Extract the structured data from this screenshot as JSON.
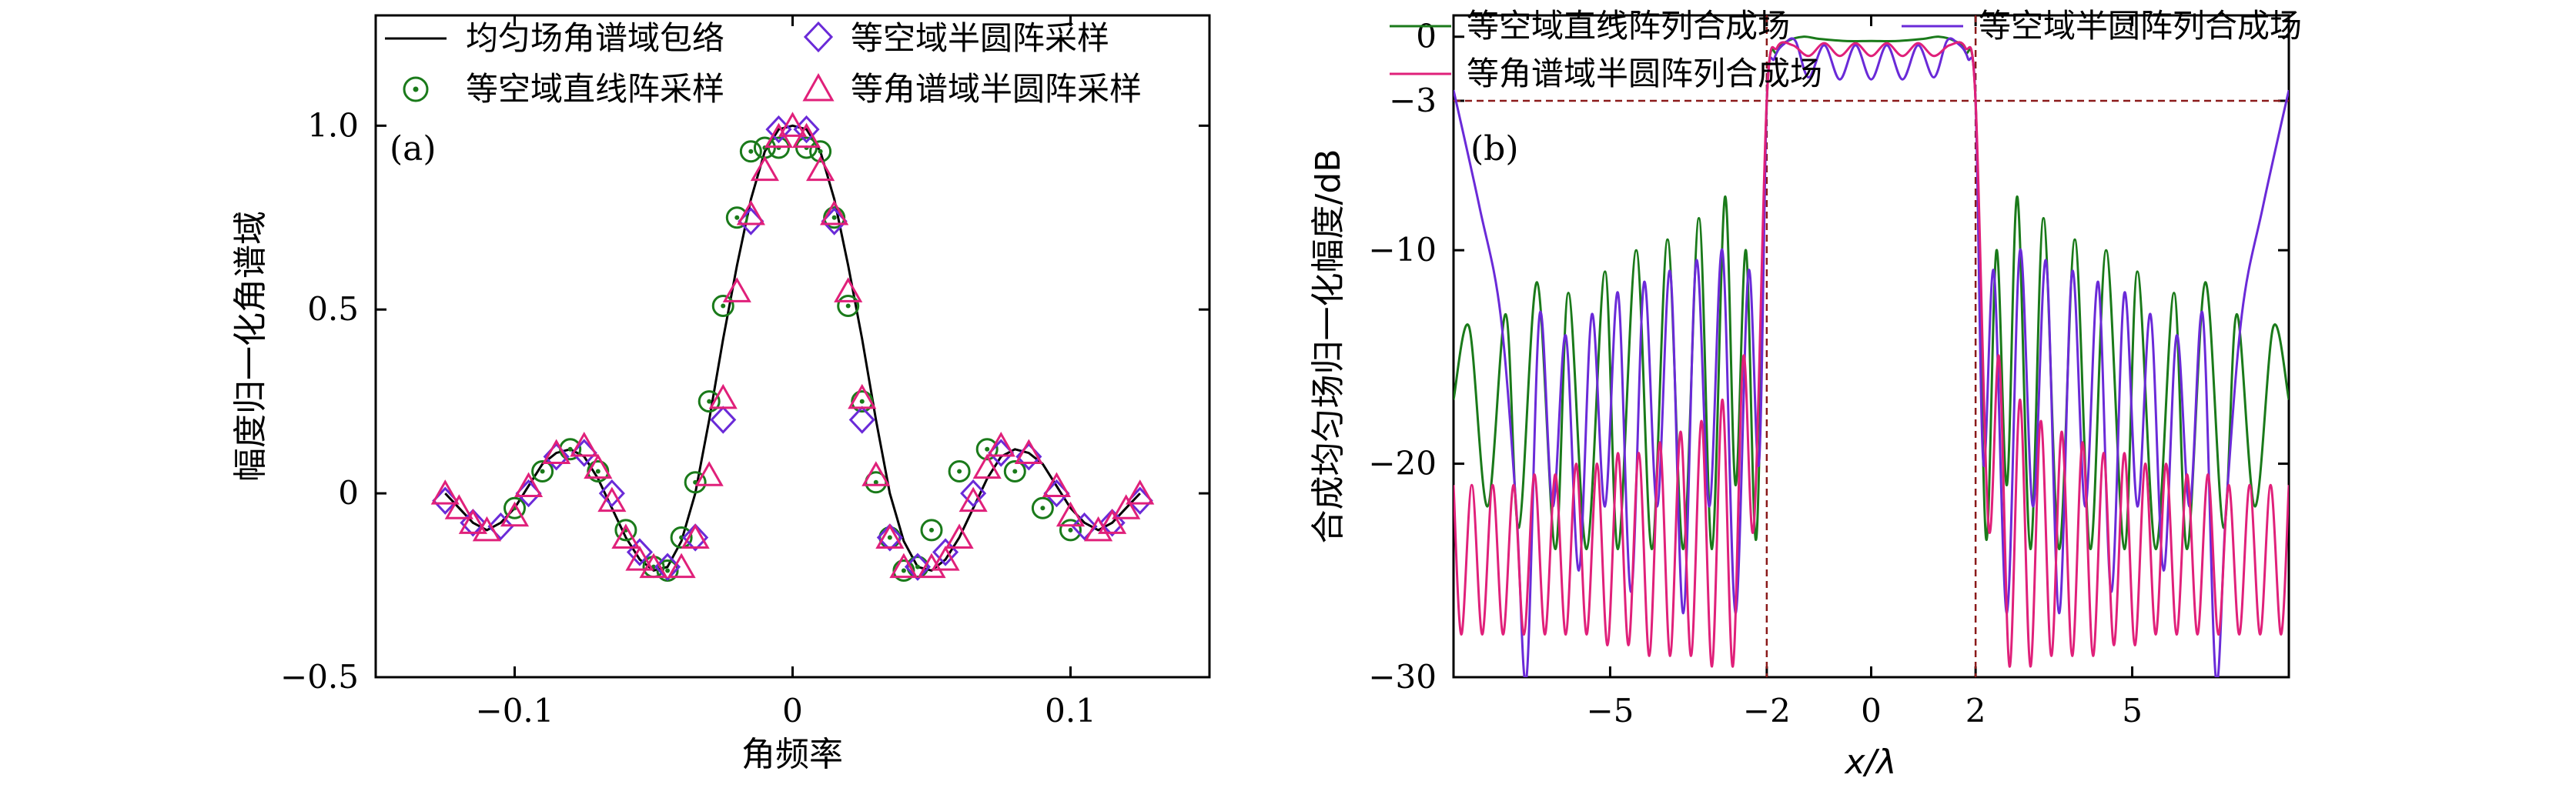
{
  "chart_data": [
    {
      "panel": "(a)",
      "type": "line",
      "xlabel": "角频率",
      "ylabel": "幅度归一化角谱域",
      "xlim": [
        -0.15,
        0.15
      ],
      "ylim": [
        -0.5,
        1.3
      ],
      "xticks": [
        -0.1,
        0,
        0.1
      ],
      "xtick_labels": [
        "−0.1",
        "0",
        "0.1"
      ],
      "yticks": [
        -0.5,
        0,
        0.5,
        1.0
      ],
      "ytick_labels": [
        "−0.5",
        "0",
        "0.5",
        "1.0"
      ],
      "legend": [
        {
          "label": "均匀场角谱域包络",
          "marker": "line",
          "color": "#000000"
        },
        {
          "label": "等空域直线阵采样",
          "marker": "circle-dot",
          "color": "#1a7a1a"
        },
        {
          "label": "等空域半圆阵采样",
          "marker": "diamond",
          "color": "#6a2ad8"
        },
        {
          "label": "等角谱域半圆阵采样",
          "marker": "triangle",
          "color": "#e0207a"
        }
      ],
      "envelope": {
        "name": "均匀场角谱域包络",
        "x": [
          -0.125,
          -0.12,
          -0.115,
          -0.11,
          -0.105,
          -0.1,
          -0.095,
          -0.09,
          -0.085,
          -0.08,
          -0.075,
          -0.07,
          -0.065,
          -0.06,
          -0.055,
          -0.05,
          -0.045,
          -0.04,
          -0.035,
          -0.03,
          -0.025,
          -0.02,
          -0.015,
          -0.01,
          -0.005,
          0,
          0.005,
          0.01,
          0.015,
          0.02,
          0.025,
          0.03,
          0.035,
          0.04,
          0.045,
          0.05,
          0.055,
          0.06,
          0.065,
          0.07,
          0.075,
          0.08,
          0.085,
          0.09,
          0.095,
          0.1,
          0.105,
          0.11,
          0.115,
          0.12,
          0.125
        ],
        "y": [
          0,
          -0.04,
          -0.08,
          -0.1,
          -0.08,
          -0.04,
          0.02,
          0.08,
          0.11,
          0.12,
          0.1,
          0.04,
          -0.04,
          -0.12,
          -0.18,
          -0.21,
          -0.2,
          -0.13,
          0.0,
          0.2,
          0.42,
          0.62,
          0.8,
          0.93,
          0.99,
          1.0,
          0.99,
          0.93,
          0.8,
          0.62,
          0.42,
          0.2,
          0.0,
          -0.13,
          -0.2,
          -0.21,
          -0.18,
          -0.12,
          -0.04,
          0.04,
          0.1,
          0.12,
          0.11,
          0.08,
          0.02,
          -0.04,
          -0.08,
          -0.1,
          -0.08,
          -0.04,
          0
        ]
      },
      "series": [
        {
          "name": "等空域直线阵采样",
          "marker": "circle-dot",
          "color": "#1a7a1a",
          "x": [
            -0.1,
            -0.09,
            -0.08,
            -0.07,
            -0.06,
            -0.05,
            -0.045,
            -0.04,
            -0.035,
            -0.03,
            -0.025,
            -0.02,
            -0.015,
            -0.01,
            -0.005,
            0.005,
            0.01,
            0.015,
            0.02,
            0.025,
            0.03,
            0.035,
            0.04,
            0.045,
            0.05,
            0.06,
            0.07,
            0.08,
            0.09,
            0.1
          ],
          "y": [
            -0.04,
            0.06,
            0.12,
            0.06,
            -0.1,
            -0.2,
            -0.21,
            -0.12,
            0.03,
            0.25,
            0.51,
            0.75,
            0.93,
            0.94,
            0.94,
            0.94,
            0.93,
            0.75,
            0.51,
            0.25,
            0.03,
            -0.12,
            -0.21,
            -0.2,
            -0.1,
            0.06,
            0.12,
            0.06,
            -0.04,
            -0.1
          ]
        },
        {
          "name": "等空域半圆阵采样",
          "marker": "diamond",
          "color": "#6a2ad8",
          "x": [
            -0.125,
            -0.115,
            -0.105,
            -0.095,
            -0.085,
            -0.075,
            -0.065,
            -0.055,
            -0.045,
            -0.035,
            -0.025,
            -0.015,
            -0.005,
            0.005,
            0.015,
            0.025,
            0.035,
            0.045,
            0.055,
            0.065,
            0.075,
            0.085,
            0.095,
            0.105,
            0.115,
            0.125
          ],
          "y": [
            -0.02,
            -0.08,
            -0.09,
            0.0,
            0.1,
            0.11,
            0.0,
            -0.16,
            -0.2,
            -0.12,
            0.2,
            0.74,
            0.99,
            0.99,
            0.74,
            0.2,
            -0.12,
            -0.2,
            -0.16,
            0.0,
            0.11,
            0.1,
            0.0,
            -0.09,
            -0.08,
            -0.02
          ]
        },
        {
          "name": "等角谱域半圆阵采样",
          "marker": "triangle",
          "color": "#e0207a",
          "x": [
            -0.125,
            -0.12,
            -0.115,
            -0.11,
            -0.1,
            -0.095,
            -0.085,
            -0.075,
            -0.07,
            -0.065,
            -0.06,
            -0.055,
            -0.05,
            -0.04,
            -0.035,
            -0.03,
            -0.025,
            -0.02,
            -0.015,
            -0.01,
            -0.005,
            0,
            0.005,
            0.01,
            0.015,
            0.02,
            0.025,
            0.03,
            0.035,
            0.04,
            0.05,
            0.055,
            0.06,
            0.065,
            0.07,
            0.075,
            0.085,
            0.095,
            0.1,
            0.11,
            0.115,
            0.12,
            0.125
          ],
          "y": [
            0.0,
            -0.04,
            -0.08,
            -0.1,
            -0.06,
            0.02,
            0.11,
            0.13,
            0.07,
            -0.02,
            -0.12,
            -0.18,
            -0.2,
            -0.2,
            -0.12,
            0.05,
            0.26,
            0.55,
            0.76,
            0.88,
            0.97,
            1.0,
            0.97,
            0.88,
            0.76,
            0.55,
            0.26,
            0.05,
            -0.12,
            -0.2,
            -0.2,
            -0.18,
            -0.12,
            -0.02,
            0.07,
            0.13,
            0.11,
            0.02,
            -0.06,
            -0.1,
            -0.08,
            -0.04,
            0.0
          ]
        }
      ]
    },
    {
      "panel": "(b)",
      "type": "line",
      "xlabel": "x/λ",
      "ylabel": "合成均匀场归一化幅度/dB",
      "xlim": [
        -8,
        8
      ],
      "ylim": [
        -30,
        1
      ],
      "xticks": [
        -5,
        -2,
        0,
        2,
        5
      ],
      "xtick_labels": [
        "−5",
        "−2",
        "0",
        "2",
        "5"
      ],
      "yticks": [
        0,
        -3,
        -10,
        -20,
        -30
      ],
      "ytick_labels": [
        "0",
        "−3",
        "−10",
        "−20",
        "−30"
      ],
      "ref_lines": {
        "vertical": [
          -2,
          2
        ],
        "horizontal": [
          -3
        ],
        "color": "#8b1a1a"
      },
      "legend": [
        {
          "label": "等空域直线阵列合成场",
          "color": "#1a7a1a"
        },
        {
          "label": "等空域半圆阵列合成场",
          "color": "#6a2ad8"
        },
        {
          "label": "等角谱域半圆阵列合成场",
          "color": "#e0207a"
        }
      ],
      "series": [
        {
          "name": "等空域直线阵列合成场",
          "color": "#1a7a1a",
          "x": [
            -8,
            -7.7,
            -7.35,
            -7.0,
            -6.75,
            -6.4,
            -6.05,
            -5.8,
            -5.45,
            -5.1,
            -4.85,
            -4.5,
            -4.2,
            -3.9,
            -3.6,
            -3.3,
            -3.05,
            -2.8,
            -2.6,
            -2.4,
            -2.2,
            -2.0,
            -1.8,
            -1.6,
            -1.3,
            -1.0,
            -0.5,
            0,
            0.5,
            1.0,
            1.3,
            1.6,
            1.8,
            2.0,
            2.2,
            2.4,
            2.6,
            2.8,
            3.05,
            3.3,
            3.6,
            3.9,
            4.2,
            4.5,
            4.85,
            5.1,
            5.45,
            5.8,
            6.05,
            6.4,
            6.75,
            7.0,
            7.35,
            7.7,
            8
          ],
          "y": [
            -17,
            -13.6,
            -22,
            -13,
            -23,
            -11.5,
            -24,
            -12,
            -24,
            -11,
            -24,
            -10,
            -24,
            -9.5,
            -24,
            -8.5,
            -24,
            -7.5,
            -21,
            -10,
            -23.5,
            -3,
            -0.7,
            -0.2,
            0,
            -0.1,
            -0.2,
            -0.2,
            -0.2,
            -0.1,
            0,
            -0.2,
            -0.7,
            -3,
            -23.5,
            -10,
            -21,
            -7.5,
            -24,
            -8.5,
            -24,
            -9.5,
            -24,
            -10,
            -24,
            -11,
            -24,
            -12,
            -24,
            -11.5,
            -23,
            -13,
            -22,
            -13.6,
            -17
          ]
        },
        {
          "name": "等空域半圆阵列合成场",
          "color": "#6a2ad8",
          "x": [
            -8,
            -7.5,
            -7.1,
            -6.8,
            -6.6,
            -6.35,
            -6.1,
            -5.85,
            -5.6,
            -5.35,
            -5.1,
            -4.85,
            -4.6,
            -4.35,
            -4.1,
            -3.85,
            -3.6,
            -3.35,
            -3.1,
            -2.85,
            -2.6,
            -2.35,
            -2.15,
            -2.0,
            -1.85,
            -1.65,
            -1.45,
            -1.2,
            -0.9,
            -0.6,
            -0.3,
            0,
            0.3,
            0.6,
            0.9,
            1.2,
            1.45,
            1.65,
            1.85,
            2.0,
            2.15,
            2.35,
            2.6,
            2.85,
            3.1,
            3.35,
            3.6,
            3.85,
            4.1,
            4.35,
            4.6,
            4.85,
            5.1,
            5.35,
            5.6,
            5.85,
            6.1,
            6.35,
            6.6,
            6.8,
            7.1,
            7.5,
            8
          ],
          "y": [
            -2.5,
            -8,
            -13,
            -22,
            -30,
            -13,
            -22,
            -14,
            -25,
            -13,
            -22,
            -12,
            -26,
            -11.5,
            -22,
            -11,
            -27,
            -10.5,
            -22,
            -10,
            -27,
            -11,
            -20,
            -3,
            -1,
            -0.3,
            -0.2,
            -1.9,
            -0.4,
            -2,
            -0.4,
            -2,
            -0.4,
            -2,
            -0.4,
            -1.9,
            -0.2,
            -0.3,
            -1,
            -3,
            -20,
            -11,
            -27,
            -10,
            -22,
            -10.5,
            -27,
            -11,
            -22,
            -11.5,
            -26,
            -12,
            -22,
            -13,
            -25,
            -14,
            -22,
            -13,
            -30,
            -22,
            -13,
            -8,
            -2.5
          ]
        },
        {
          "name": "等角谱域半圆阵列合成场",
          "color": "#e0207a",
          "x": [
            -8,
            -7.85,
            -7.65,
            -7.45,
            -7.25,
            -7.05,
            -6.85,
            -6.65,
            -6.45,
            -6.25,
            -6.05,
            -5.85,
            -5.65,
            -5.45,
            -5.25,
            -5.05,
            -4.85,
            -4.65,
            -4.45,
            -4.25,
            -4.05,
            -3.85,
            -3.65,
            -3.45,
            -3.25,
            -3.05,
            -2.85,
            -2.65,
            -2.45,
            -2.25,
            -2.0,
            -1.8,
            -1.5,
            -1.2,
            -0.9,
            -0.6,
            -0.3,
            0,
            0.3,
            0.6,
            0.9,
            1.2,
            1.5,
            1.8,
            2.0,
            2.25,
            2.45,
            2.65,
            2.85,
            3.05,
            3.25,
            3.45,
            3.65,
            3.85,
            4.05,
            4.25,
            4.45,
            4.65,
            4.85,
            5.05,
            5.25,
            5.45,
            5.65,
            5.85,
            6.05,
            6.25,
            6.45,
            6.65,
            6.85,
            7.05,
            7.25,
            7.45,
            7.65,
            7.85,
            8
          ],
          "y": [
            -21,
            -28,
            -21,
            -28,
            -21,
            -28,
            -21,
            -28,
            -20.5,
            -28,
            -20.5,
            -28,
            -20,
            -28,
            -20,
            -28.5,
            -19.5,
            -28.5,
            -19.5,
            -29,
            -19,
            -29,
            -18.5,
            -29,
            -18,
            -29.5,
            -17,
            -29.5,
            -15,
            -23,
            -3,
            -0.5,
            -0.4,
            -0.9,
            -0.3,
            -0.9,
            -0.3,
            -0.9,
            -0.3,
            -0.9,
            -0.3,
            -0.9,
            -0.4,
            -0.5,
            -3,
            -23,
            -15,
            -29.5,
            -17,
            -29.5,
            -18,
            -29,
            -18.5,
            -29,
            -19,
            -29,
            -19.5,
            -28.5,
            -19.5,
            -28.5,
            -20,
            -28,
            -20,
            -28,
            -20.5,
            -28,
            -20.5,
            -28,
            -21,
            -28,
            -21,
            -28,
            -21,
            -28,
            -21
          ]
        }
      ]
    }
  ]
}
